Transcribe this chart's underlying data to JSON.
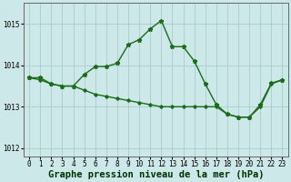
{
  "title": "Graphe pression niveau de la mer (hPa)",
  "background_color": "#cce8e8",
  "grid_color": "#aacccc",
  "line_color": "#1a6b1a",
  "ylim": [
    1011.8,
    1015.5
  ],
  "yticks": [
    1012,
    1013,
    1014,
    1015
  ],
  "xlim": [
    -0.5,
    23.5
  ],
  "xticks": [
    0,
    1,
    2,
    3,
    4,
    5,
    6,
    7,
    8,
    9,
    10,
    11,
    12,
    13,
    14,
    15,
    16,
    17,
    18,
    19,
    20,
    21,
    22,
    23
  ],
  "series1_x": [
    0,
    1,
    2,
    3,
    4,
    5,
    6,
    7,
    8,
    9,
    10,
    11,
    12,
    13,
    14,
    15,
    16,
    17,
    18,
    19,
    20,
    21,
    22,
    23
  ],
  "series1_y": [
    1013.7,
    1013.7,
    1013.55,
    1013.5,
    1013.5,
    1013.78,
    1013.97,
    1013.97,
    1014.05,
    1014.5,
    1014.62,
    1014.88,
    1015.08,
    1014.45,
    1014.45,
    1014.1,
    1013.55,
    1013.05,
    1012.82,
    1012.75,
    1012.75,
    1013.05,
    1013.57,
    1013.65
  ],
  "series2_x": [
    0,
    1,
    2,
    3,
    4,
    5,
    6,
    7,
    8,
    9,
    10,
    11,
    12,
    13,
    14,
    15,
    16,
    17,
    18,
    19,
    20,
    21,
    22,
    23
  ],
  "series2_y": [
    1013.7,
    1013.65,
    1013.55,
    1013.5,
    1013.5,
    1013.4,
    1013.3,
    1013.25,
    1013.2,
    1013.15,
    1013.1,
    1013.05,
    1013.0,
    1013.0,
    1013.0,
    1013.0,
    1013.0,
    1013.0,
    1012.82,
    1012.75,
    1012.75,
    1013.0,
    1013.55,
    1013.65
  ],
  "title_fontsize": 7.5,
  "tick_fontsize": 5.5,
  "marker_size": 3.5,
  "line_width": 1.0
}
